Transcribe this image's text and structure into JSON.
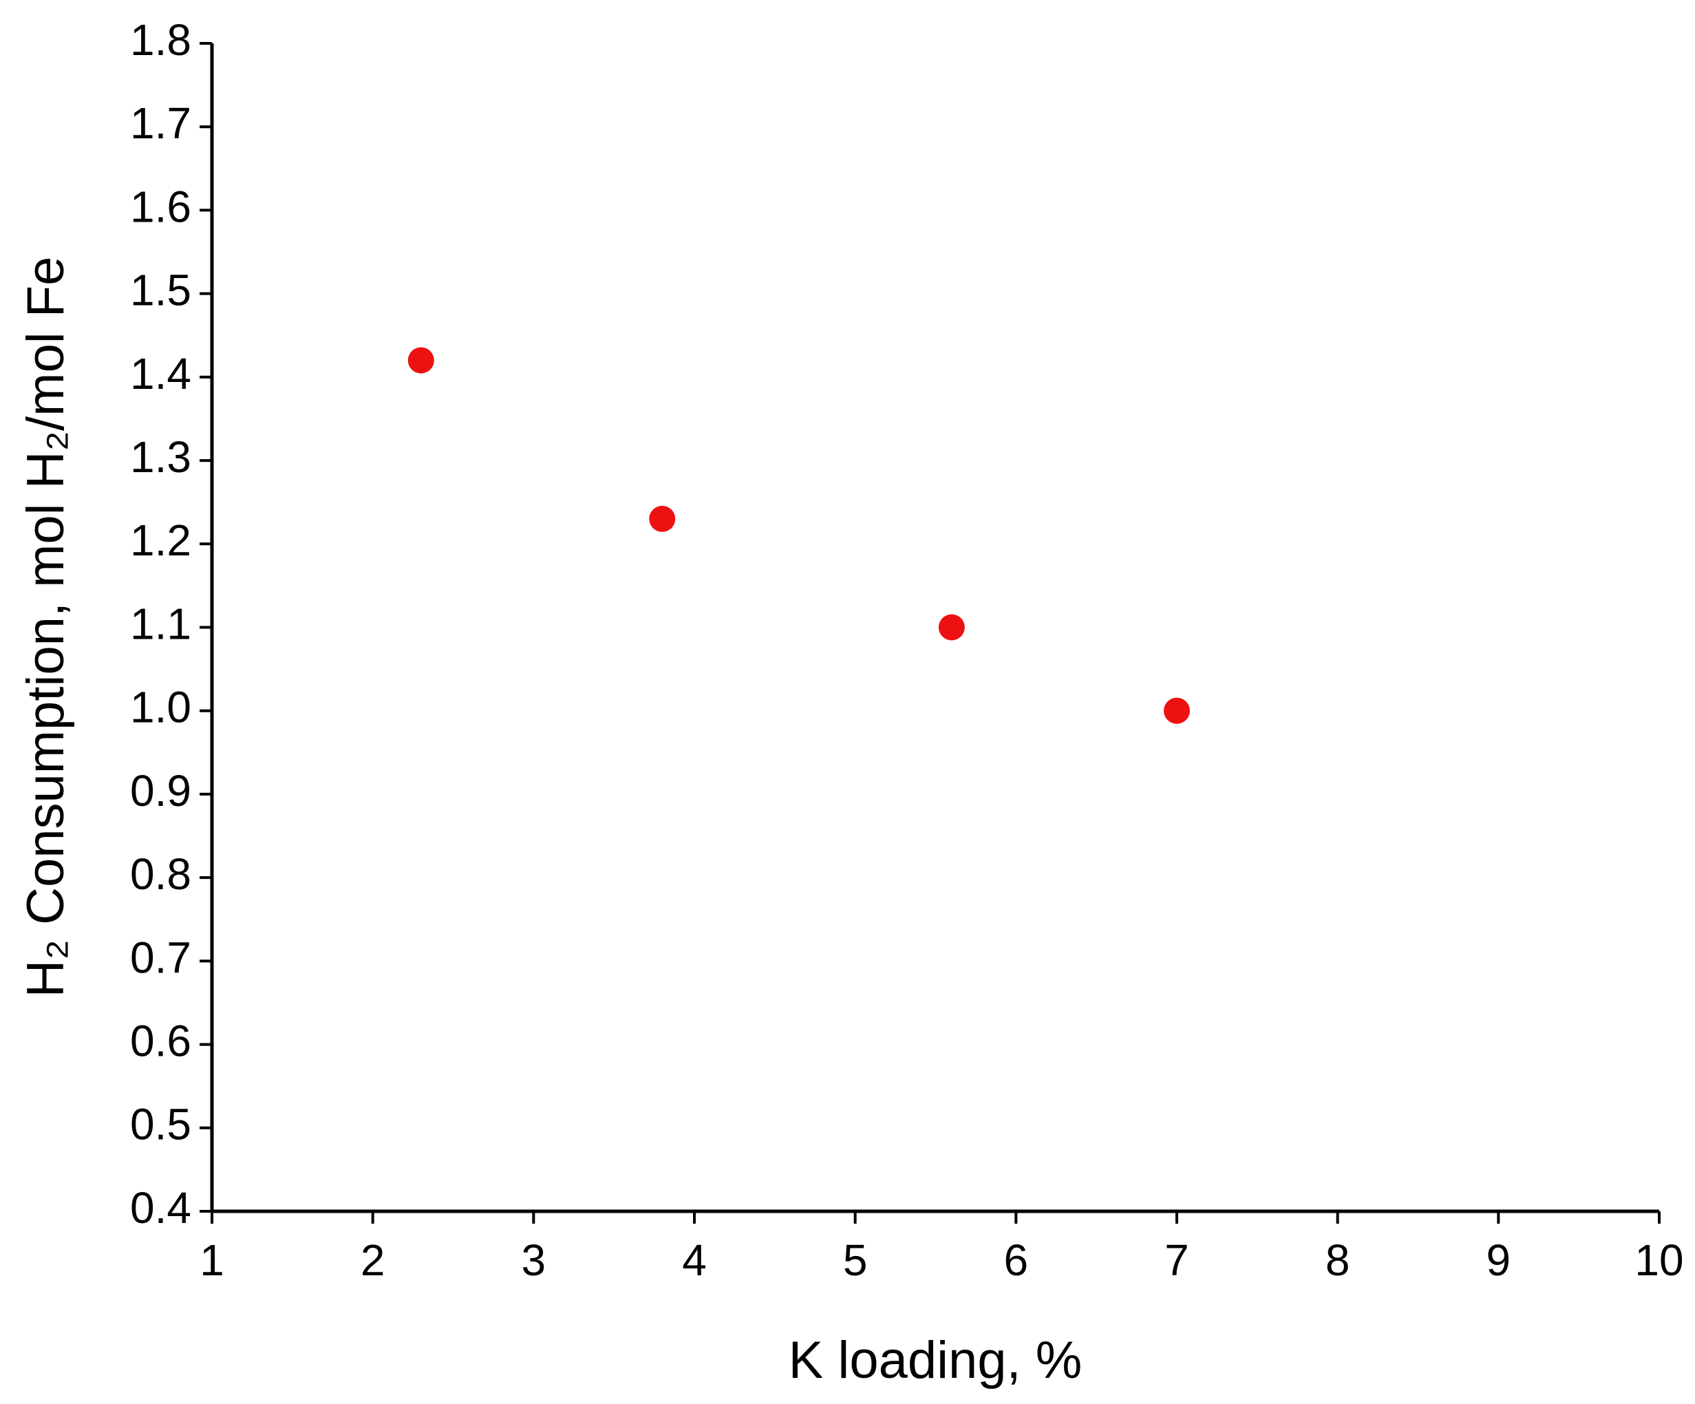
{
  "chart_data": {
    "type": "scatter",
    "xlabel": "K loading, %",
    "ylabel": "H₂ Consumption, mol H₂/mol Fe",
    "x": [
      2.3,
      3.8,
      5.6,
      7.0
    ],
    "values": [
      1.42,
      1.23,
      1.1,
      1.0
    ],
    "color": "#ee1111",
    "xlim": [
      1,
      10
    ],
    "xticks": [
      1,
      2,
      3,
      4,
      5,
      6,
      7,
      8,
      9,
      10
    ],
    "ylim": [
      0.4,
      1.8
    ],
    "yticks": [
      0.4,
      0.5,
      0.6,
      0.7,
      0.8,
      0.9,
      {
        "value": 1,
        "label": "1.0"
      },
      1.1,
      1.2,
      1.3,
      1.4,
      1.5,
      1.6,
      1.7,
      1.8
    ],
    "grid": false
  }
}
